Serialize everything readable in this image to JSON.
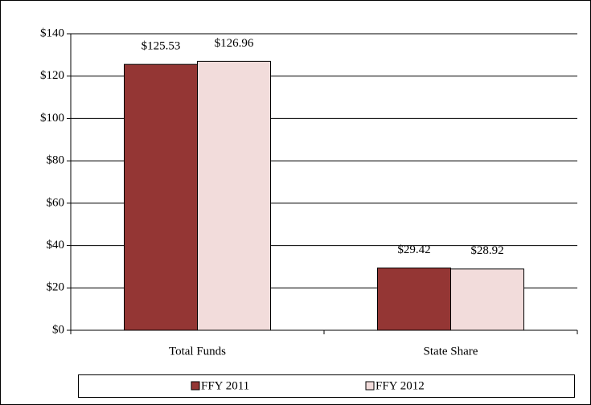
{
  "chart_data": {
    "type": "bar",
    "categories": [
      "Total Funds",
      "State Share"
    ],
    "series": [
      {
        "name": "FFY 2011",
        "color": "#943634",
        "values": [
          125.53,
          29.42
        ],
        "value_labels": [
          "$125.53",
          "$29.42"
        ]
      },
      {
        "name": "FFY 2012",
        "color": "#f2dcdb",
        "values": [
          126.96,
          28.92
        ],
        "value_labels": [
          "$126.96",
          "$28.92"
        ]
      }
    ],
    "ylim": [
      0,
      140
    ],
    "yticks": [
      {
        "value": 0,
        "label": "$0"
      },
      {
        "value": 20,
        "label": "$20"
      },
      {
        "value": 40,
        "label": "$40"
      },
      {
        "value": 60,
        "label": "$60"
      },
      {
        "value": 80,
        "label": "$80"
      },
      {
        "value": 100,
        "label": "$100"
      },
      {
        "value": 120,
        "label": "$120"
      },
      {
        "value": 140,
        "label": "$140"
      }
    ],
    "grid": true,
    "legend": "bottom"
  }
}
